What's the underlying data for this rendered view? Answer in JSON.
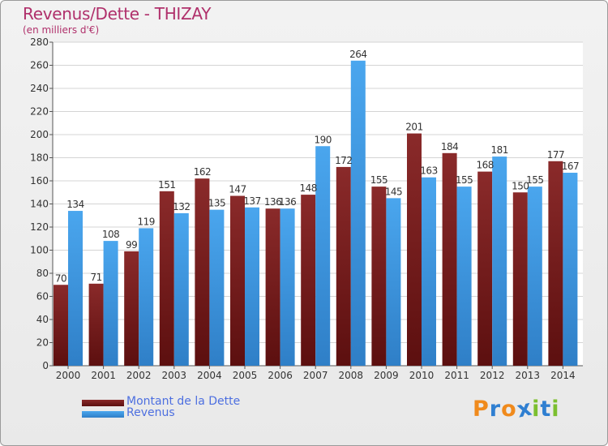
{
  "header": {
    "title": "Revenus/Dette - THIZAY",
    "subtitle": "(en milliers d'€)"
  },
  "chart_data": {
    "type": "bar",
    "title": "Revenus/Dette - THIZAY",
    "subtitle": "(en milliers d'€)",
    "xlabel": "",
    "ylabel": "",
    "ylim": [
      0,
      280
    ],
    "ytick_step": 20,
    "grid": true,
    "legend_position": "bottom-left",
    "categories": [
      "2000",
      "2001",
      "2002",
      "2003",
      "2004",
      "2005",
      "2006",
      "2007",
      "2008",
      "2009",
      "2010",
      "2011",
      "2012",
      "2013",
      "2014"
    ],
    "series": [
      {
        "name": "Montant de la Dette",
        "color": "#7a1e1e",
        "values": [
          70,
          71,
          99,
          151,
          162,
          147,
          136,
          148,
          172,
          155,
          201,
          184,
          168,
          150,
          177
        ]
      },
      {
        "name": "Revenus",
        "color": "#3a96dd",
        "values": [
          134,
          108,
          119,
          132,
          135,
          137,
          136,
          190,
          264,
          145,
          163,
          155,
          181,
          155,
          167
        ]
      }
    ]
  },
  "legend": {
    "items": [
      "Montant de la Dette",
      "Revenus"
    ]
  },
  "logo": {
    "letters": [
      "P",
      "r",
      "o",
      "x",
      "i",
      "t",
      "i"
    ],
    "colors": [
      "#f08a1c",
      "#2f7fd1",
      "#f08a1c",
      "#2f7fd1",
      "#7cbf2f",
      "#2f7fd1",
      "#7cbf2f"
    ]
  }
}
